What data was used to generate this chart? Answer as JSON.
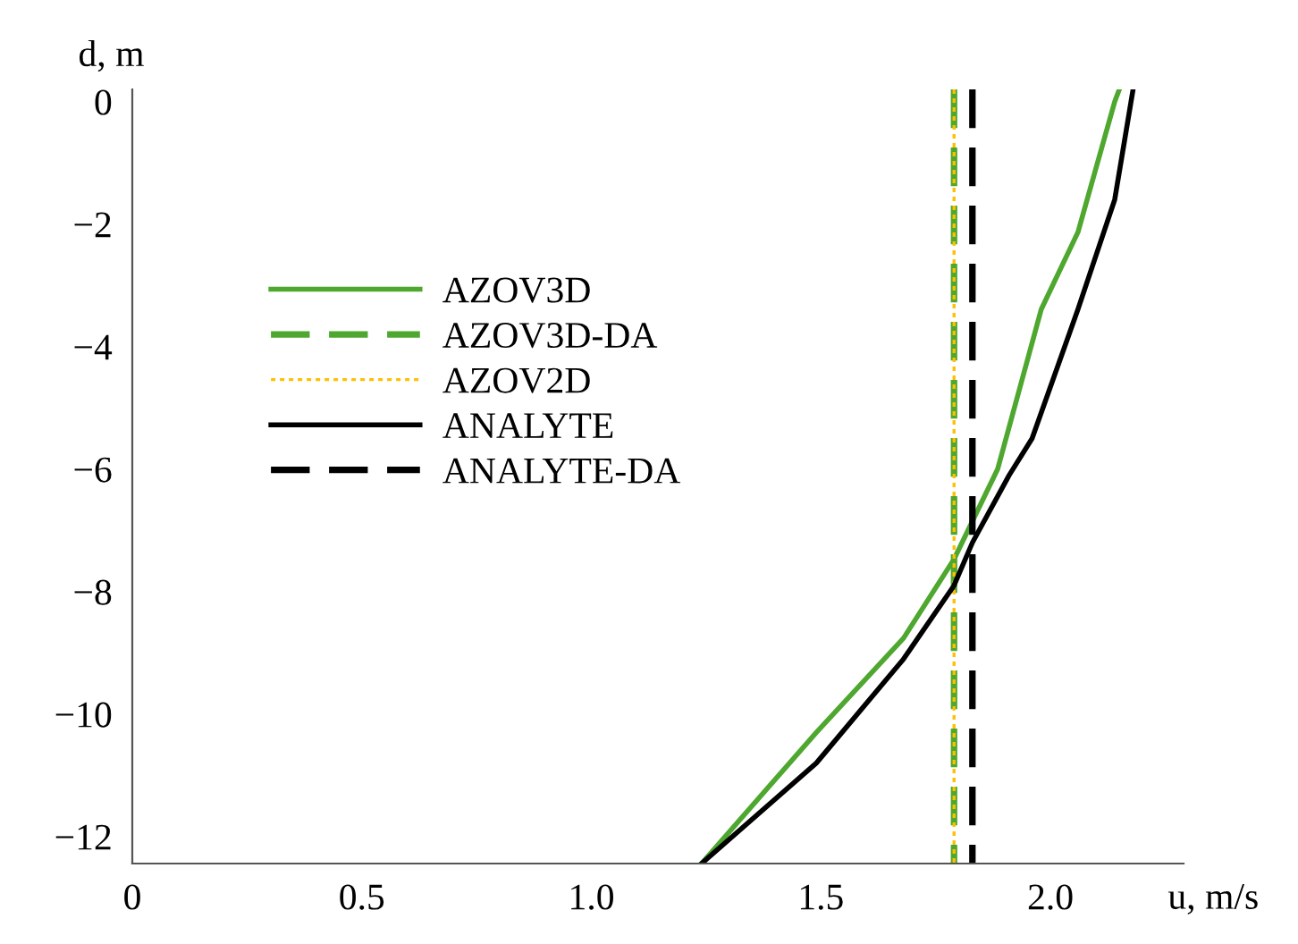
{
  "chart_data": {
    "type": "line",
    "xlabel": "u, m/s",
    "ylabel": "d, m",
    "xlim": [
      0,
      2.29
    ],
    "ylim": [
      -12.44,
      0.2
    ],
    "xticks": [
      0,
      0.5,
      {
        "value": 1.0,
        "label": "1.0"
      },
      1.5,
      {
        "value": 2.0,
        "label": "2.0"
      }
    ],
    "yticks": [
      0,
      {
        "value": -2,
        "label": "−2"
      },
      {
        "value": -4,
        "label": "−4"
      },
      {
        "value": -6,
        "label": "−6"
      },
      {
        "value": -8,
        "label": "−8"
      },
      {
        "value": -10,
        "label": "−10"
      },
      {
        "value": -12,
        "label": "−12"
      }
    ],
    "grid": false,
    "legend": "left",
    "marker": "none",
    "series": [
      {
        "name": "AZOV3D",
        "color": "#4ea72e",
        "line_style": "solid",
        "x": [
          2.15,
          2.14,
          2.06,
          1.98,
          1.885,
          1.79,
          1.68,
          1.49,
          1.24
        ],
        "values": [
          0.2,
          0,
          -2.13,
          -3.39,
          -6.0,
          -7.47,
          -8.76,
          -10.3,
          -12.44
        ]
      },
      {
        "name": "AZOV3D-DA",
        "color": "#4ea72e",
        "line_style": "dashed",
        "x": [
          1.79,
          1.79
        ],
        "values": [
          0.2,
          -12.44
        ]
      },
      {
        "name": "AZOV2D",
        "color": "#ffc000",
        "line_style": "dotted",
        "x": [
          1.79,
          1.79
        ],
        "values": [
          0.2,
          -12.44
        ]
      },
      {
        "name": "ANALYTE",
        "color": "#000000",
        "line_style": "solid",
        "x": [
          2.18,
          2.14,
          2.06,
          1.96,
          1.91,
          1.83,
          1.79,
          1.68,
          1.49,
          1.24
        ],
        "values": [
          0.2,
          -1.6,
          -3.39,
          -5.5,
          -6.1,
          -7.2,
          -7.9,
          -9.1,
          -10.8,
          -12.44
        ]
      },
      {
        "name": "ANALYTE-DA",
        "color": "#000000",
        "line_style": "dashed",
        "x": [
          1.83,
          1.83
        ],
        "values": [
          0.2,
          -12.44
        ]
      }
    ]
  }
}
